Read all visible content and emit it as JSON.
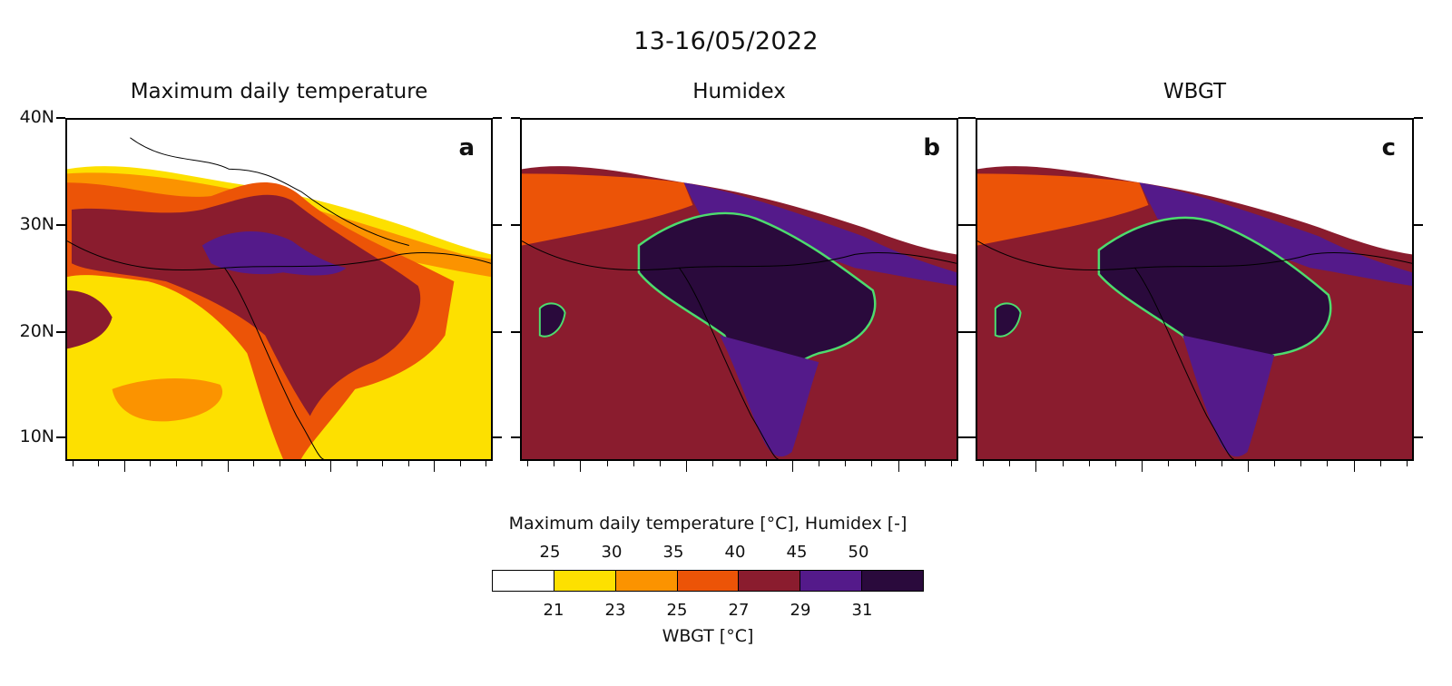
{
  "title": "13-16/05/2022",
  "panels": [
    {
      "title": "Maximum daily temperature",
      "letter": "a"
    },
    {
      "title": "Humidex",
      "letter": "b"
    },
    {
      "title": "WBGT",
      "letter": "c"
    }
  ],
  "lat_labels": [
    "40N",
    "30N",
    "20N",
    "10N"
  ],
  "legend": {
    "top_title": "Maximum daily temperature [°C], Humidex [-]",
    "bottom_title": "WBGT [°C]",
    "top_ticks": [
      "25",
      "30",
      "35",
      "40",
      "45",
      "50"
    ],
    "bottom_ticks": [
      "21",
      "23",
      "25",
      "27",
      "29",
      "31"
    ],
    "colors": [
      "#ffffff",
      "#fde000",
      "#fb9300",
      "#ec5407",
      "#8a1c2e",
      "#541a8a",
      "#2a0a3c"
    ]
  },
  "highlight_contour_color": "#4ddc6e"
}
